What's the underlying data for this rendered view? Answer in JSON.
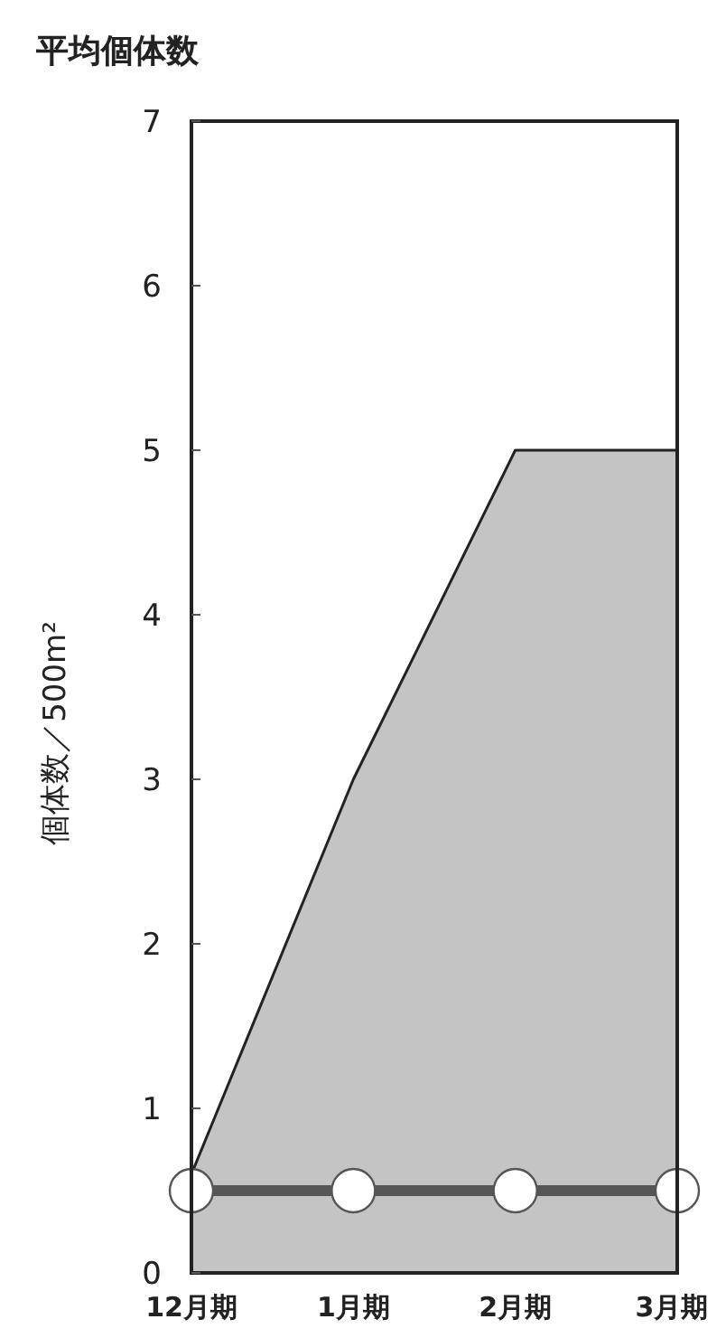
{
  "chart_data": {
    "type": "area",
    "title": "平均個体数",
    "ylabel": "個体数／500m²",
    "categories": [
      "12月期",
      "1月期",
      "2月期",
      "3月期"
    ],
    "series": [
      {
        "color": "#c4c4c4",
        "values": [
          0.6,
          3,
          5,
          5
        ]
      },
      {
        "type": "line",
        "color": "#555555",
        "marker": "circle",
        "values": [
          0.5,
          0.5,
          0.5,
          0.5
        ]
      }
    ],
    "ylim": [
      0,
      7
    ],
    "yticks": [
      0,
      1,
      2,
      3,
      4,
      5,
      6,
      7
    ],
    "grid": false
  }
}
